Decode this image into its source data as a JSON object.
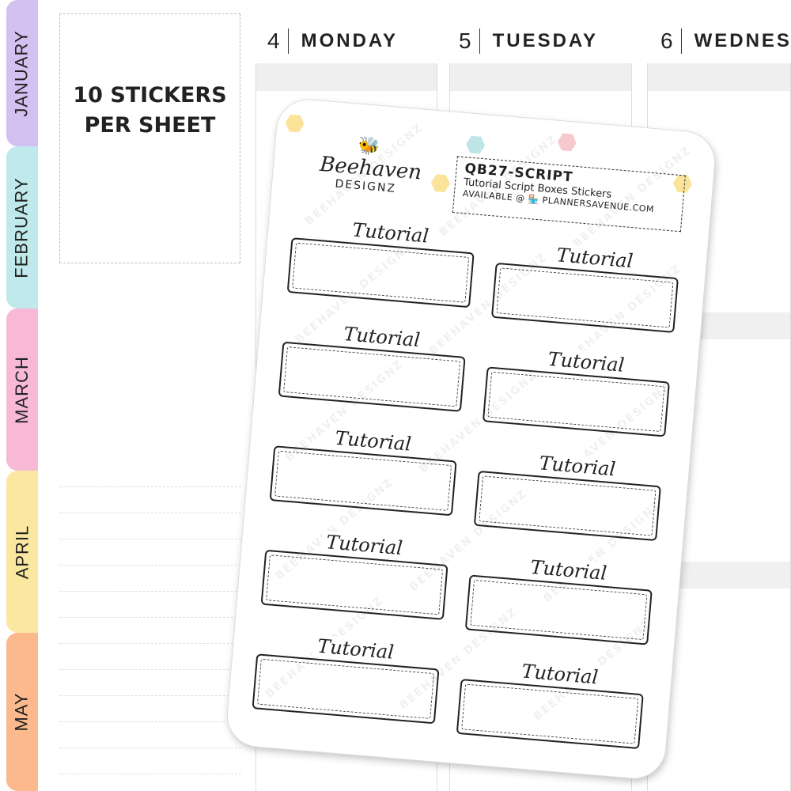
{
  "tabs": [
    {
      "label": "JANUARY",
      "color": "#d5c0f2"
    },
    {
      "label": "FEBRUARY",
      "color": "#bfe9ea"
    },
    {
      "label": "MARCH",
      "color": "#f8b9d7"
    },
    {
      "label": "APRIL",
      "color": "#fbe8a0"
    },
    {
      "label": "MAY",
      "color": "#fbb98c"
    }
  ],
  "promo": {
    "line1": "10 STICKERS",
    "line2": "PER SHEET"
  },
  "days": [
    {
      "num": "4",
      "name": "MONDAY"
    },
    {
      "num": "5",
      "name": "TUESDAY"
    },
    {
      "num": "6",
      "name": "WEDNES"
    }
  ],
  "sheet": {
    "logo_script": "Beehaven",
    "logo_sub": "DESIGNZ",
    "code": "QB27-SCRIPT",
    "description": "Tutorial Script Boxes Stickers",
    "available": "AVAILABLE @ 🏪 PLANNERSAVENUE.COM",
    "watermark": "BEEHAVEN DESIGNZ",
    "sticker_label": "Tutorial",
    "sticker_count": 10
  }
}
